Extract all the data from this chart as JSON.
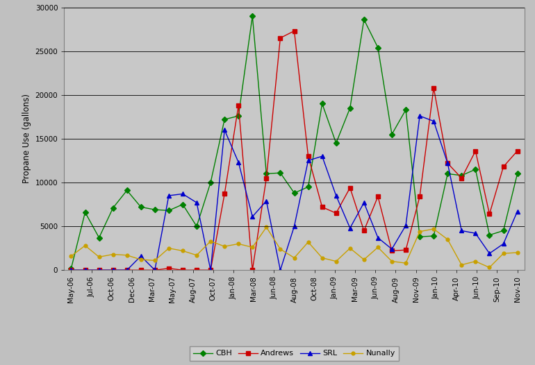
{
  "ylabel": "Propane Use (gallons)",
  "xlabels": [
    "May-06",
    "Jul-06",
    "Oct-06",
    "Dec-06",
    "Mar-07",
    "May-07",
    "Aug-07",
    "Oct-07",
    "Jan-08",
    "Mar-08",
    "Jun-08",
    "Aug-08",
    "Oct-08",
    "Jan-09",
    "Mar-09",
    "Jun-09",
    "Aug-09",
    "Nov-09",
    "Jan-10",
    "Apr-10",
    "Jun-10",
    "Sep-10",
    "Nov-10"
  ],
  "ylim": [
    0,
    30000
  ],
  "yticks": [
    0,
    5000,
    10000,
    15000,
    20000,
    25000,
    30000
  ],
  "CBH": [
    200,
    6600,
    3700,
    7100,
    9100,
    7200,
    6900,
    6800,
    7500,
    5000,
    10000,
    17200,
    17600,
    29000,
    11000,
    11100,
    8800,
    9500,
    19000,
    14500,
    18500,
    28600,
    25400,
    15500,
    18300,
    3800,
    3900,
    11000,
    10800,
    11500,
    4000,
    4500,
    11000
  ],
  "Andrews": [
    0,
    0,
    0,
    0,
    0,
    0,
    0,
    200,
    0,
    0,
    0,
    8700,
    18800,
    0,
    10500,
    26500,
    27300,
    13000,
    7200,
    6500,
    9400,
    4500,
    8400,
    2200,
    2300,
    8400,
    20800,
    12200,
    10500,
    13600,
    6400,
    11800,
    13600
  ],
  "SRL": [
    0,
    0,
    0,
    0,
    0,
    1600,
    0,
    8500,
    8700,
    7700,
    0,
    16000,
    12300,
    6100,
    7900,
    0,
    5000,
    12500,
    13000,
    8500,
    4800,
    7700,
    3700,
    2400,
    5100,
    17600,
    17000,
    12200,
    4500,
    4200,
    1900,
    3000,
    6700
  ],
  "Nunally": [
    1600,
    2800,
    1500,
    1800,
    1700,
    1200,
    1100,
    2500,
    2200,
    1700,
    3300,
    2700,
    3000,
    2600,
    4900,
    2400,
    1400,
    3200,
    1400,
    1000,
    2500,
    1200,
    2600,
    1000,
    800,
    4400,
    4700,
    3500,
    600,
    1000,
    300,
    1900,
    2000
  ],
  "n_points": 33,
  "background_color": "#c0c0c0",
  "plot_bg_color": "#c8c8c8",
  "cbh_color": "#008000",
  "andrews_color": "#cc0000",
  "srl_color": "#0000cc",
  "nunally_color": "#c8a000",
  "legend_labels": [
    "CBH",
    "Andrews",
    "SRL",
    "Nunally"
  ]
}
